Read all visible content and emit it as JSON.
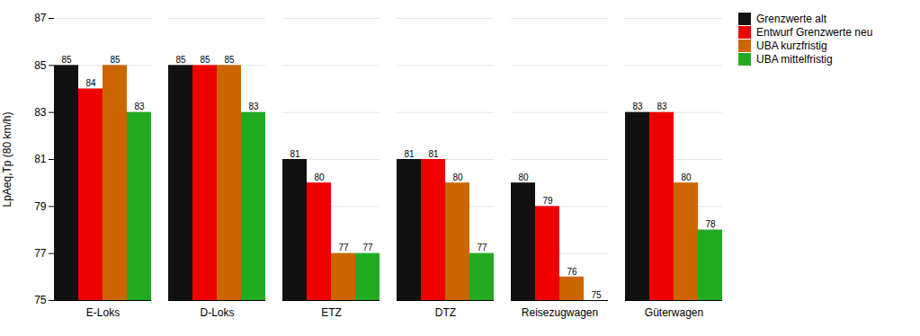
{
  "chart_data": {
    "type": "bar",
    "categories": [
      "E-Loks",
      "D-Loks",
      "ETZ",
      "DTZ",
      "Reisezugwagen",
      "Güterwagen"
    ],
    "series": [
      {
        "name": "Grenzwerte alt",
        "color": "#111111",
        "values": [
          85,
          85,
          81,
          81,
          80,
          83
        ]
      },
      {
        "name": "Entwurf Grenzwerte neu",
        "color": "#ee0000",
        "values": [
          84,
          85,
          80,
          81,
          79,
          83
        ]
      },
      {
        "name": "UBA kurzfristig",
        "color": "#cc6600",
        "values": [
          85,
          85,
          77,
          80,
          76,
          80
        ]
      },
      {
        "name": "UBA mittelfristig",
        "color": "#22aa22",
        "values": [
          83,
          83,
          77,
          77,
          75,
          78
        ]
      }
    ],
    "ylabel": "LpAeq,Tp (80 km/h)",
    "ylim": [
      75,
      87
    ],
    "yticks": [
      75,
      77,
      79,
      81,
      83,
      85,
      87
    ],
    "grid": true,
    "legend": "right",
    "data_labels": true
  }
}
